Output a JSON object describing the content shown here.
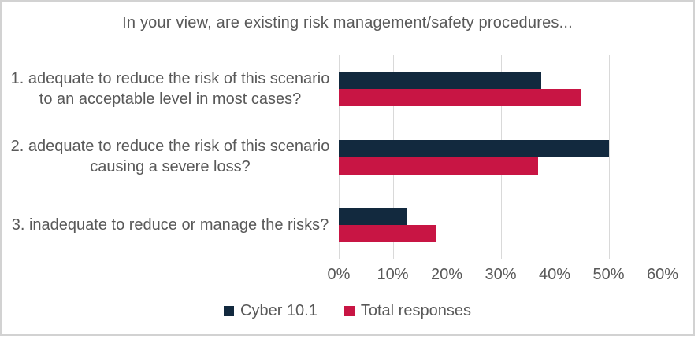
{
  "chart_data": {
    "type": "bar",
    "orientation": "horizontal",
    "title": "In your view, are existing risk management/safety procedures...",
    "categories": [
      "1. adequate to reduce the risk of this scenario to an acceptable level in most cases?",
      "2. adequate to reduce the risk of this scenario causing a severe loss?",
      "3. inadequate to reduce or manage the risks?"
    ],
    "series": [
      {
        "name": "Cyber 10.1",
        "color": "#12293e",
        "values": [
          37.5,
          50,
          12.5
        ]
      },
      {
        "name": "Total responses",
        "color": "#c81544",
        "values": [
          45,
          37,
          18
        ]
      }
    ],
    "x_axis": {
      "min": 0,
      "max": 60,
      "tick_step": 10,
      "tick_labels": [
        "0%",
        "10%",
        "20%",
        "30%",
        "40%",
        "50%",
        "60%"
      ]
    },
    "grid": "vertical-gridlines",
    "legend_position": "bottom",
    "colors": {
      "text": "#595959",
      "gridline": "#d9d9d9",
      "border": "#d2d2d2",
      "background": "#ffffff"
    }
  }
}
